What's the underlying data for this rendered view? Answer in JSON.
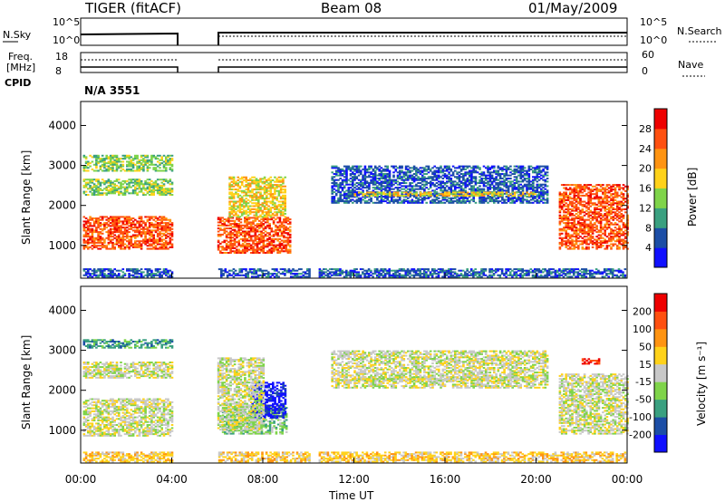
{
  "header": {
    "title": "TIGER (fitACF)",
    "beam": "Beam 08",
    "date": "01/May/2009"
  },
  "summary": {
    "nsky_label": "N.Sky",
    "nsearch_label": "N.Search",
    "noise_ticks": [
      "10^5",
      "10^0"
    ],
    "freq_label_1": "Freq.",
    "freq_label_2": "[MHz]",
    "freq_ticks": [
      "18",
      "8"
    ],
    "nave_label": "Nave",
    "nave_ticks": [
      "60",
      "0"
    ],
    "cpid_label": "CPID",
    "cpid_value": "N/A 3551"
  },
  "chart_data": [
    {
      "type": "heatmap",
      "name": "power",
      "xlabel": "",
      "ylabel": "Slant Range [km]",
      "x_ticks": [
        "00:00",
        "04:00",
        "08:00",
        "12:00",
        "16:00",
        "20:00",
        "00:00"
      ],
      "xlim_hours": [
        0,
        24
      ],
      "y_ticks": [
        1000,
        2000,
        3000,
        4000
      ],
      "ylim": [
        180,
        4600
      ],
      "colorbar_label": "Power [dB]",
      "colorbar_ticks": [
        4,
        8,
        12,
        16,
        20,
        24,
        28
      ],
      "colorbar_range": [
        0,
        32
      ],
      "colors": [
        "#1010ff",
        "#1c4ea6",
        "#3aa080",
        "#7fd44a",
        "#ffd21a",
        "#ff9412",
        "#ff5010",
        "#ee0000"
      ],
      "data_gaps_hours": [
        [
          4.0,
          6.0
        ],
        [
          10.0,
          10.4
        ]
      ],
      "blobs": [
        {
          "t0": 0.1,
          "t1": 4.0,
          "r0": 900,
          "r1": 1700,
          "level": 6
        },
        {
          "t0": 0.1,
          "t1": 4.0,
          "r0": 2250,
          "r1": 2650,
          "level": 3
        },
        {
          "t0": 0.1,
          "t1": 4.0,
          "r0": 2850,
          "r1": 3250,
          "level": 3
        },
        {
          "t0": 6.0,
          "t1": 9.2,
          "r0": 800,
          "r1": 1700,
          "level": 6
        },
        {
          "t0": 6.5,
          "t1": 9.0,
          "r0": 1700,
          "r1": 2700,
          "level": 4
        },
        {
          "t0": 11.0,
          "t1": 20.5,
          "r0": 2050,
          "r1": 3000,
          "level": 1
        },
        {
          "t0": 12.0,
          "t1": 20.0,
          "r0": 2230,
          "r1": 2320,
          "level": 4
        },
        {
          "t0": 21.0,
          "t1": 24.0,
          "r0": 900,
          "r1": 2500,
          "level": 6
        },
        {
          "t0": 0.1,
          "t1": 23.9,
          "r0": 200,
          "r1": 400,
          "level": 1
        }
      ]
    },
    {
      "type": "heatmap",
      "name": "velocity",
      "xlabel": "Time UT",
      "ylabel": "Slant Range [km]",
      "x_ticks": [
        "00:00",
        "04:00",
        "08:00",
        "12:00",
        "16:00",
        "20:00",
        "00:00"
      ],
      "xlim_hours": [
        0,
        24
      ],
      "y_ticks": [
        1000,
        2000,
        3000,
        4000
      ],
      "ylim": [
        180,
        4600
      ],
      "colorbar_label": "Velocity [m s⁻¹]",
      "colorbar_ticks": [
        "200",
        "100",
        "50",
        "15",
        "-15",
        "-50",
        "-100",
        "-200"
      ],
      "colors": [
        "#1010ff",
        "#1c4ea6",
        "#3aa080",
        "#7fd44a",
        "#c8c8c8",
        "#ffd21a",
        "#ff9412",
        "#ff5010",
        "#ee0000"
      ],
      "data_gaps_hours": [
        [
          4.0,
          6.0
        ],
        [
          10.0,
          10.4
        ]
      ],
      "blobs": [
        {
          "t0": 0.1,
          "t1": 4.0,
          "r0": 850,
          "r1": 1800,
          "level": 4
        },
        {
          "t0": 0.1,
          "t1": 4.0,
          "r0": 2300,
          "r1": 2700,
          "level": 4
        },
        {
          "t0": 0.1,
          "t1": 4.0,
          "r0": 3050,
          "r1": 3250,
          "level": 2
        },
        {
          "t0": 6.2,
          "t1": 9.0,
          "r0": 900,
          "r1": 1600,
          "level": 3
        },
        {
          "t0": 7.5,
          "t1": 9.0,
          "r0": 1300,
          "r1": 2200,
          "level": 0
        },
        {
          "t0": 6.0,
          "t1": 8.0,
          "r0": 1000,
          "r1": 2800,
          "level": 4
        },
        {
          "t0": 11.0,
          "t1": 20.5,
          "r0": 2050,
          "r1": 3000,
          "level": 4
        },
        {
          "t0": 12.0,
          "t1": 20.0,
          "r0": 2230,
          "r1": 2320,
          "level": 4
        },
        {
          "t0": 21.0,
          "t1": 24.0,
          "r0": 900,
          "r1": 2400,
          "level": 4
        },
        {
          "t0": 22.0,
          "t1": 22.8,
          "r0": 2650,
          "r1": 2780,
          "level": 8
        },
        {
          "t0": 0.1,
          "t1": 23.9,
          "r0": 200,
          "r1": 450,
          "level": 5
        }
      ]
    }
  ]
}
